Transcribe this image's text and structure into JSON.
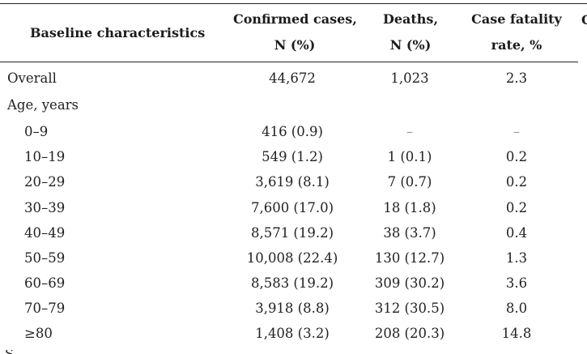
{
  "table": {
    "headers": {
      "characteristic": "Baseline characteristics",
      "cases_line1": "Confirmed cases,",
      "cases_line2": "N (%)",
      "deaths_line1": "Deaths,",
      "deaths_line2": "N (%)",
      "cfr_line1": "Case fatality",
      "cfr_line2": "rate, %",
      "partial_next_column": "C"
    },
    "rows": [
      {
        "label": "Overall",
        "cases": "44,672",
        "deaths": "1,023",
        "cfr": "2.3"
      },
      {
        "label": "Age, years",
        "cases": "",
        "deaths": "",
        "cfr": ""
      },
      {
        "label": "0–9",
        "cases": "416 (0.9)",
        "deaths": "–",
        "cfr": "–"
      },
      {
        "label": "10–19",
        "cases": "549 (1.2)",
        "deaths": "1 (0.1)",
        "cfr": "0.2"
      },
      {
        "label": "20–29",
        "cases": "3,619 (8.1)",
        "deaths": "7 (0.7)",
        "cfr": "0.2"
      },
      {
        "label": "30–39",
        "cases": "7,600 (17.0)",
        "deaths": "18 (1.8)",
        "cfr": "0.2"
      },
      {
        "label": "40–49",
        "cases": "8,571 (19.2)",
        "deaths": "38 (3.7)",
        "cfr": "0.4"
      },
      {
        "label": "50–59",
        "cases": "10,008 (22.4)",
        "deaths": "130 (12.7)",
        "cfr": "1.3"
      },
      {
        "label": "60–69",
        "cases": "8,583 (19.2)",
        "deaths": "309 (30.2)",
        "cfr": "3.6"
      },
      {
        "label": "70–79",
        "cases": "3,918 (8.8)",
        "deaths": "312 (30.5)",
        "cfr": "8.0"
      },
      {
        "label": "≥80",
        "cases": "1,408 (3.2)",
        "deaths": "208 (20.3)",
        "cfr": "14.8"
      }
    ],
    "partial_next_row_glyph": "S"
  }
}
